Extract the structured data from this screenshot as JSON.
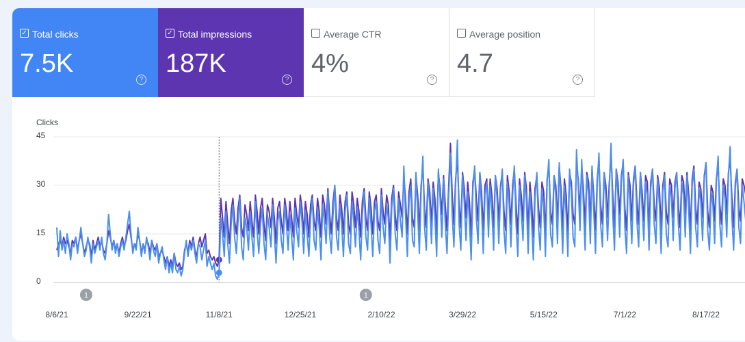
{
  "chart_data": {
    "type": "line",
    "metrics": [
      {
        "label": "Total clicks",
        "value": "7.5K",
        "checked": true,
        "color": "#4285f4"
      },
      {
        "label": "Total impressions",
        "value": "187K",
        "checked": true,
        "color": "#5e35b1"
      },
      {
        "label": "Average CTR",
        "value": "4%",
        "checked": false
      },
      {
        "label": "Average position",
        "value": "4.7",
        "checked": false
      }
    ],
    "y_label": "Clicks",
    "ylim": [
      0,
      45
    ],
    "yticks": [
      0,
      15,
      30,
      45
    ],
    "grid": true,
    "annotations": [
      "1",
      "1"
    ],
    "categories": [
      "8/6/21",
      null,
      null,
      null,
      null,
      null,
      null,
      null,
      null,
      null,
      null,
      null,
      null,
      null,
      null,
      null,
      null,
      null,
      null,
      null,
      null,
      null,
      null,
      null,
      null,
      null,
      null,
      null,
      null,
      null,
      null,
      null,
      null,
      null,
      null,
      null,
      null,
      null,
      null,
      null,
      null,
      null,
      null,
      null,
      null,
      null,
      null,
      "9/22/21",
      null,
      null,
      null,
      null,
      null,
      null,
      null,
      null,
      null,
      null,
      null,
      null,
      null,
      null,
      null,
      null,
      null,
      null,
      null,
      null,
      null,
      null,
      null,
      null,
      null,
      null,
      null,
      null,
      null,
      null,
      null,
      null,
      null,
      null,
      null,
      null,
      null,
      null,
      null,
      null,
      null,
      null,
      null,
      null,
      null,
      null,
      "11/8/21",
      null,
      null,
      null,
      null,
      null,
      null,
      null,
      null,
      null,
      null,
      null,
      null,
      null,
      null,
      null,
      null,
      null,
      null,
      null,
      null,
      null,
      null,
      null,
      null,
      null,
      null,
      null,
      null,
      null,
      null,
      null,
      null,
      null,
      null,
      null,
      null,
      null,
      null,
      null,
      null,
      null,
      null,
      null,
      null,
      null,
      null,
      "12/25/21",
      null,
      null,
      null,
      null,
      null,
      null,
      null,
      null,
      null,
      null,
      null,
      null,
      null,
      null,
      null,
      null,
      null,
      null,
      null,
      null,
      null,
      null,
      null,
      null,
      null,
      null,
      null,
      null,
      null,
      null,
      null,
      null,
      null,
      null,
      null,
      null,
      null,
      null,
      null,
      null,
      null,
      null,
      null,
      null,
      null,
      null,
      "2/10/22",
      null,
      null,
      null,
      null,
      null,
      null,
      null,
      null,
      null,
      null,
      null,
      null,
      null,
      null,
      null,
      null,
      null,
      null,
      null,
      null,
      null,
      null,
      null,
      null,
      null,
      null,
      null,
      null,
      null,
      null,
      null,
      null,
      null,
      null,
      null,
      null,
      null,
      null,
      null,
      null,
      null,
      null,
      null,
      null,
      null,
      null,
      "3/29/22",
      null,
      null,
      null,
      null,
      null,
      null,
      null,
      null,
      null,
      null,
      null,
      null,
      null,
      null,
      null,
      null,
      null,
      null,
      null,
      null,
      null,
      null,
      null,
      null,
      null,
      null,
      null,
      null,
      null,
      null,
      null,
      null,
      null,
      null,
      null,
      null,
      null,
      null,
      null,
      null,
      null,
      null,
      null,
      null,
      null,
      null,
      "5/15/22",
      null,
      null,
      null,
      null,
      null,
      null,
      null,
      null,
      null,
      null,
      null,
      null,
      null,
      null,
      null,
      null,
      null,
      null,
      null,
      null,
      null,
      null,
      null,
      null,
      null,
      null,
      null,
      null,
      null,
      null,
      null,
      null,
      null,
      null,
      null,
      null,
      null,
      null,
      null,
      null,
      null,
      null,
      null,
      null,
      null,
      null,
      "7/1/22",
      null,
      null,
      null,
      null,
      null,
      null,
      null,
      null,
      null,
      null,
      null,
      null,
      null,
      null,
      null,
      null,
      null,
      null,
      null,
      null,
      null,
      null,
      null,
      null,
      null,
      null,
      null,
      null,
      null,
      null,
      null,
      null,
      null,
      null,
      null,
      null,
      null,
      null,
      null,
      null,
      null,
      null,
      null,
      null,
      null,
      null,
      "8/17/22",
      null,
      null,
      null,
      null,
      null,
      null,
      null,
      null,
      null,
      null,
      null,
      null,
      null,
      null,
      null,
      null,
      null,
      null,
      null,
      null,
      null,
      null,
      null
    ],
    "series": [
      {
        "name": "Total impressions",
        "color": "#5e35b1",
        "values": [
          10,
          12,
          13,
          11,
          14,
          12,
          13,
          11,
          9,
          13,
          12,
          14,
          10,
          13,
          15,
          12,
          9,
          11,
          13,
          12,
          8,
          13,
          10,
          12,
          14,
          11,
          13,
          10,
          9,
          12,
          16,
          14,
          11,
          13,
          10,
          12,
          9,
          12,
          14,
          11,
          13,
          16,
          18,
          14,
          10,
          12,
          11,
          15,
          13,
          9,
          12,
          10,
          13,
          12,
          9,
          13,
          11,
          10,
          12,
          8,
          9,
          10,
          8,
          6,
          8,
          5,
          7,
          5,
          9,
          6,
          5,
          6,
          4,
          5,
          10,
          12,
          9,
          13,
          11,
          14,
          10,
          8,
          12,
          14,
          11,
          13,
          15,
          9,
          10,
          8,
          7,
          8,
          6,
          5,
          7,
          26,
          20,
          14,
          25,
          18,
          12,
          22,
          26,
          19,
          15,
          23,
          27,
          17,
          14,
          24,
          21,
          16,
          25,
          19,
          14,
          27,
          22,
          15,
          23,
          26,
          18,
          13,
          24,
          22,
          17,
          26,
          20,
          12,
          23,
          25,
          19,
          15,
          26,
          22,
          16,
          25,
          20,
          14,
          26,
          21,
          17,
          27,
          23,
          15,
          25,
          21,
          14,
          24,
          27,
          19,
          16,
          26,
          22,
          14,
          27,
          24,
          18,
          29,
          21,
          15,
          25,
          30,
          20,
          16,
          27,
          23,
          15,
          25,
          28,
          18,
          15,
          28,
          24,
          17,
          26,
          22,
          14,
          25,
          29,
          20,
          16,
          28,
          23,
          15,
          25,
          27,
          19,
          16,
          29,
          22,
          18,
          27,
          24,
          13,
          26,
          30,
          21,
          16,
          28,
          24,
          20,
          33,
          26,
          15,
          28,
          32,
          20,
          17,
          33,
          27,
          16,
          30,
          36,
          23,
          17,
          32,
          28,
          18,
          31,
          26,
          15,
          34,
          29,
          21,
          33,
          24,
          16,
          30,
          43,
          27,
          18,
          32,
          38,
          24,
          17,
          34,
          29,
          20,
          31,
          25,
          14,
          31,
          35,
          26,
          19,
          34,
          28,
          16,
          30,
          32,
          20,
          32,
          27,
          17,
          33,
          29,
          19,
          30,
          34,
          22,
          16,
          33,
          28,
          18,
          30,
          35,
          24,
          15,
          32,
          27,
          19,
          34,
          29,
          16,
          31,
          25,
          14,
          29,
          33,
          23,
          17,
          31,
          28,
          15,
          32,
          36,
          22,
          18,
          33,
          30,
          19,
          36,
          29,
          16,
          32,
          27,
          15,
          34,
          31,
          21,
          18,
          37,
          32,
          22,
          36,
          29,
          17,
          34,
          31,
          19,
          35,
          27,
          16,
          32,
          38,
          24,
          18,
          34,
          30,
          20,
          31,
          40,
          27,
          17,
          35,
          31,
          21,
          33,
          37,
          23,
          16,
          34,
          30,
          19,
          32,
          36,
          25,
          18,
          34,
          28,
          19,
          33,
          31,
          17,
          31,
          35,
          24,
          19,
          33,
          29,
          16,
          30,
          34,
          22,
          18,
          32,
          30,
          20,
          31,
          34,
          24,
          17,
          33,
          31,
          21,
          34,
          27,
          16,
          32,
          36,
          23,
          18,
          31,
          29,
          20,
          33,
          37,
          22,
          17,
          30,
          28,
          19,
          32,
          36,
          24,
          18,
          32,
          30,
          21,
          34,
          38,
          26,
          17,
          31,
          35,
          23,
          19,
          32,
          30,
          27
        ]
      },
      {
        "name": "Total clicks",
        "color": "#4a8ff0",
        "values": [
          17,
          8,
          16,
          10,
          13,
          9,
          15,
          12,
          7,
          12,
          11,
          14,
          9,
          13,
          17,
          12,
          8,
          10,
          14,
          11,
          6,
          12,
          9,
          11,
          13,
          10,
          14,
          9,
          7,
          12,
          21,
          15,
          10,
          13,
          9,
          12,
          8,
          11,
          13,
          10,
          14,
          18,
          22,
          15,
          9,
          12,
          10,
          17,
          13,
          8,
          12,
          9,
          14,
          11,
          7,
          13,
          10,
          8,
          12,
          6,
          9,
          11,
          7,
          4,
          8,
          3,
          6,
          3,
          9,
          4,
          3,
          5,
          2,
          4,
          9,
          13,
          8,
          12,
          10,
          13,
          9,
          6,
          12,
          11,
          7,
          10,
          13,
          5,
          8,
          6,
          4,
          6,
          2,
          1,
          3,
          20,
          15,
          8,
          22,
          12,
          6,
          18,
          24,
          14,
          9,
          19,
          26,
          11,
          7,
          20,
          17,
          10,
          22,
          14,
          8,
          25,
          16,
          9,
          18,
          23,
          12,
          7,
          21,
          17,
          11,
          24,
          15,
          6,
          19,
          22,
          13,
          9,
          24,
          18,
          10,
          21,
          14,
          7,
          23,
          16,
          11,
          25,
          19,
          9,
          22,
          15,
          8,
          20,
          26,
          13,
          10,
          23,
          17,
          7,
          24,
          19,
          12,
          28,
          15,
          9,
          21,
          30,
          14,
          10,
          24,
          18,
          8,
          22,
          27,
          12,
          9,
          25,
          19,
          11,
          23,
          16,
          7,
          21,
          28,
          14,
          10,
          26,
          18,
          8,
          22,
          25,
          13,
          9,
          27,
          17,
          12,
          24,
          20,
          6,
          23,
          29,
          15,
          10,
          26,
          19,
          14,
          36,
          21,
          8,
          25,
          30,
          13,
          11,
          34,
          22,
          9,
          28,
          39,
          17,
          10,
          31,
          24,
          12,
          29,
          20,
          8,
          35,
          26,
          14,
          32,
          18,
          9,
          27,
          40,
          21,
          11,
          30,
          44,
          18,
          10,
          33,
          25,
          13,
          28,
          19,
          7,
          29,
          36,
          20,
          12,
          34,
          23,
          9,
          27,
          31,
          14,
          30,
          22,
          10,
          33,
          26,
          12,
          28,
          35,
          16,
          9,
          31,
          24,
          11,
          27,
          36,
          18,
          8,
          30,
          22,
          13,
          33,
          25,
          9,
          28,
          19,
          7,
          26,
          34,
          17,
          10,
          29,
          23,
          8,
          31,
          38,
          15,
          11,
          33,
          27,
          12,
          37,
          24,
          9,
          30,
          21,
          8,
          35,
          28,
          14,
          11,
          41,
          30,
          16,
          38,
          24,
          10,
          33,
          27,
          12,
          36,
          22,
          9,
          30,
          40,
          18,
          11,
          34,
          26,
          13,
          29,
          43,
          21,
          10,
          35,
          27,
          14,
          31,
          38,
          17,
          9,
          33,
          25,
          12,
          30,
          36,
          19,
          11,
          34,
          23,
          13,
          31,
          27,
          10,
          29,
          35,
          18,
          12,
          32,
          24,
          9,
          28,
          33,
          15,
          11,
          30,
          26,
          13,
          29,
          34,
          18,
          10,
          31,
          27,
          14,
          33,
          22,
          9,
          30,
          35,
          17,
          11,
          29,
          25,
          13,
          32,
          37,
          16,
          10,
          28,
          24,
          12,
          31,
          39,
          18,
          11,
          30,
          26,
          14,
          33,
          42,
          20,
          10,
          29,
          35,
          17,
          12,
          30,
          25,
          19
        ]
      }
    ]
  }
}
